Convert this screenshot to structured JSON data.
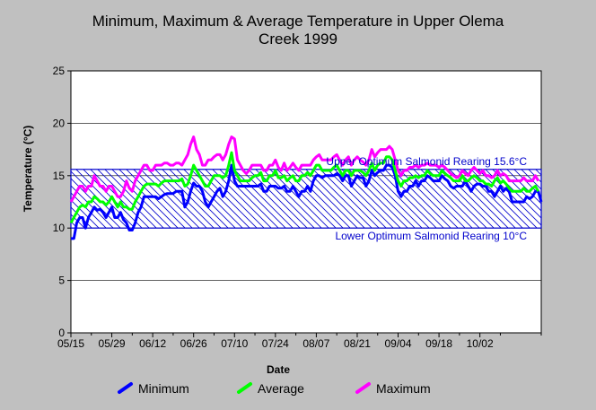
{
  "chart_data": {
    "type": "line",
    "title": "Minimum, Maximum & Average Temperature in Upper Olema\nCreek 1999",
    "xlabel": "Date",
    "ylabel": "Temperature (°C)",
    "ylim": [
      0,
      25
    ],
    "yticks": [
      "0",
      "5",
      "10",
      "15",
      "20",
      "25"
    ],
    "xticks": [
      "05/15",
      "05/29",
      "06/12",
      "06/26",
      "07/10",
      "07/24",
      "08/07",
      "08/21",
      "09/04",
      "09/18",
      "10/02"
    ],
    "grid": "horizontal",
    "legend_position": "bottom",
    "days_total": 162,
    "bands": [
      {
        "label": "Upper Optimum Salmonid Rearing 15.6°C",
        "value": 15.6,
        "color": "#0000cc"
      },
      {
        "label": "Lower Optimum Salmonid Rearing 10°C",
        "value": 10,
        "color": "#0000cc"
      }
    ],
    "series": [
      {
        "name": "Minimum",
        "color": "#0000ff",
        "values": [
          9.0,
          9.0,
          10.5,
          11.0,
          11.0,
          10.0,
          11.0,
          11.5,
          12.0,
          11.7,
          11.8,
          11.5,
          11.0,
          11.5,
          12.0,
          11.0,
          11.0,
          11.5,
          10.8,
          10.5,
          9.8,
          9.8,
          10.5,
          11.5,
          12.0,
          13.0,
          13.0,
          13.0,
          13.0,
          13.0,
          12.8,
          13.0,
          13.2,
          13.3,
          13.3,
          13.3,
          13.5,
          13.5,
          13.5,
          12.0,
          12.5,
          13.5,
          14.3,
          14.0,
          14.0,
          13.5,
          12.5,
          12.0,
          12.5,
          13.0,
          13.5,
          13.8,
          13.0,
          13.5,
          14.5,
          16.0,
          14.5,
          14.0,
          14.0,
          14.0,
          14.0,
          14.0,
          14.0,
          14.0,
          14.0,
          14.2,
          13.5,
          13.5,
          14.0,
          14.0,
          14.0,
          13.8,
          13.8,
          14.0,
          13.5,
          13.5,
          14.0,
          13.5,
          13.0,
          13.5,
          13.5,
          14.0,
          13.5,
          14.5,
          15.0,
          15.0,
          14.8,
          15.0,
          15.0,
          15.0,
          15.0,
          15.2,
          15.0,
          14.5,
          15.0,
          15.0,
          14.0,
          14.5,
          15.0,
          14.8,
          14.8,
          14.0,
          14.5,
          15.5,
          15.0,
          15.3,
          15.5,
          15.5,
          16.0,
          16.0,
          15.8,
          15.0,
          13.5,
          13.0,
          13.5,
          13.5,
          14.0,
          14.0,
          14.5,
          14.0,
          14.5,
          14.5,
          15.0,
          14.8,
          14.5,
          14.5,
          14.5,
          15.0,
          14.7,
          14.5,
          14.0,
          13.8,
          14.0,
          14.0,
          14.0,
          14.5,
          14.0,
          13.5,
          14.0,
          14.2,
          14.2,
          14.0,
          14.0,
          13.5,
          13.5,
          13.0,
          13.5,
          14.0,
          13.5,
          13.8,
          13.5,
          12.5,
          12.5,
          12.5,
          12.5,
          12.5,
          13.0,
          12.8,
          13.0,
          13.5,
          13.5,
          12.5
        ]
      },
      {
        "name": "Average",
        "color": "#00ff00",
        "values": [
          10.5,
          11.0,
          11.5,
          12.0,
          12.2,
          12.0,
          12.5,
          12.5,
          13.0,
          12.8,
          12.5,
          12.5,
          12.2,
          12.5,
          13.0,
          12.5,
          12.0,
          12.5,
          12.0,
          12.0,
          11.8,
          11.8,
          12.5,
          13.0,
          13.5,
          14.0,
          14.2,
          14.2,
          14.2,
          14.2,
          14.0,
          14.3,
          14.5,
          14.5,
          14.5,
          14.5,
          14.5,
          14.5,
          14.7,
          14.0,
          14.2,
          15.0,
          16.0,
          15.5,
          15.0,
          14.5,
          14.0,
          14.0,
          14.5,
          15.0,
          15.0,
          15.0,
          14.8,
          15.0,
          16.0,
          17.2,
          15.5,
          15.0,
          14.5,
          14.5,
          14.5,
          14.5,
          14.8,
          15.0,
          15.0,
          15.3,
          14.5,
          14.5,
          15.0,
          15.0,
          15.5,
          14.8,
          14.8,
          15.0,
          14.5,
          14.8,
          15.0,
          14.5,
          14.5,
          15.0,
          15.0,
          15.3,
          15.0,
          15.5,
          16.0,
          16.0,
          15.5,
          15.5,
          15.5,
          15.5,
          15.8,
          16.0,
          15.5,
          15.0,
          15.5,
          15.5,
          15.0,
          15.5,
          15.5,
          15.5,
          15.3,
          15.0,
          15.5,
          16.2,
          15.5,
          16.0,
          16.2,
          16.2,
          16.8,
          16.8,
          16.5,
          15.5,
          14.5,
          14.0,
          14.5,
          14.5,
          14.8,
          14.8,
          15.0,
          14.8,
          15.0,
          15.0,
          15.5,
          15.2,
          15.0,
          15.0,
          15.0,
          15.5,
          15.2,
          15.0,
          14.8,
          14.5,
          14.5,
          14.5,
          15.0,
          14.5,
          14.5,
          14.8,
          15.0,
          14.8,
          14.5,
          14.5,
          14.2,
          14.2,
          14.0,
          14.5,
          14.8,
          14.3,
          14.5,
          14.2,
          13.8,
          13.5,
          13.5,
          13.5,
          13.5,
          13.8,
          13.5,
          13.5,
          13.8,
          14.0,
          13.5
        ]
      },
      {
        "name": "Maximum",
        "color": "#ff00ff",
        "values": [
          12.5,
          13.0,
          13.5,
          14.0,
          14.0,
          13.5,
          14.0,
          14.0,
          15.0,
          14.5,
          14.0,
          14.0,
          13.5,
          14.0,
          14.0,
          13.5,
          13.0,
          13.0,
          13.5,
          14.5,
          13.8,
          13.5,
          14.5,
          15.0,
          15.5,
          16.0,
          16.0,
          15.5,
          15.5,
          16.0,
          16.0,
          16.0,
          16.2,
          16.2,
          16.0,
          16.0,
          16.2,
          16.2,
          16.0,
          16.5,
          17.0,
          18.0,
          18.7,
          17.5,
          17.0,
          16.0,
          16.0,
          16.5,
          16.5,
          16.8,
          17.0,
          17.0,
          16.5,
          17.0,
          18.0,
          18.7,
          18.5,
          16.5,
          16.0,
          15.5,
          15.2,
          15.5,
          16.0,
          16.0,
          16.0,
          16.0,
          15.5,
          15.5,
          16.0,
          16.0,
          16.5,
          15.8,
          15.5,
          16.2,
          15.5,
          15.8,
          16.2,
          15.8,
          15.5,
          16.0,
          16.0,
          16.0,
          16.0,
          16.5,
          16.8,
          17.0,
          16.5,
          16.5,
          16.5,
          16.5,
          16.8,
          17.0,
          16.5,
          16.0,
          16.5,
          16.8,
          16.0,
          16.5,
          16.8,
          16.5,
          16.3,
          16.0,
          16.5,
          17.5,
          16.8,
          17.2,
          17.5,
          17.5,
          17.5,
          17.8,
          17.5,
          16.5,
          15.5,
          15.0,
          15.5,
          15.5,
          15.8,
          15.8,
          16.0,
          15.8,
          16.0,
          16.0,
          16.2,
          16.0,
          16.0,
          16.0,
          15.8,
          16.0,
          15.8,
          15.5,
          15.2,
          15.0,
          14.8,
          15.0,
          15.5,
          15.2,
          15.0,
          15.5,
          15.8,
          15.5,
          15.2,
          15.5,
          15.0,
          15.0,
          14.8,
          15.0,
          15.5,
          15.0,
          15.2,
          15.0,
          14.5,
          14.5,
          14.5,
          14.5,
          14.5,
          14.8,
          14.5,
          14.5,
          14.5,
          15.0,
          14.5
        ]
      }
    ]
  }
}
